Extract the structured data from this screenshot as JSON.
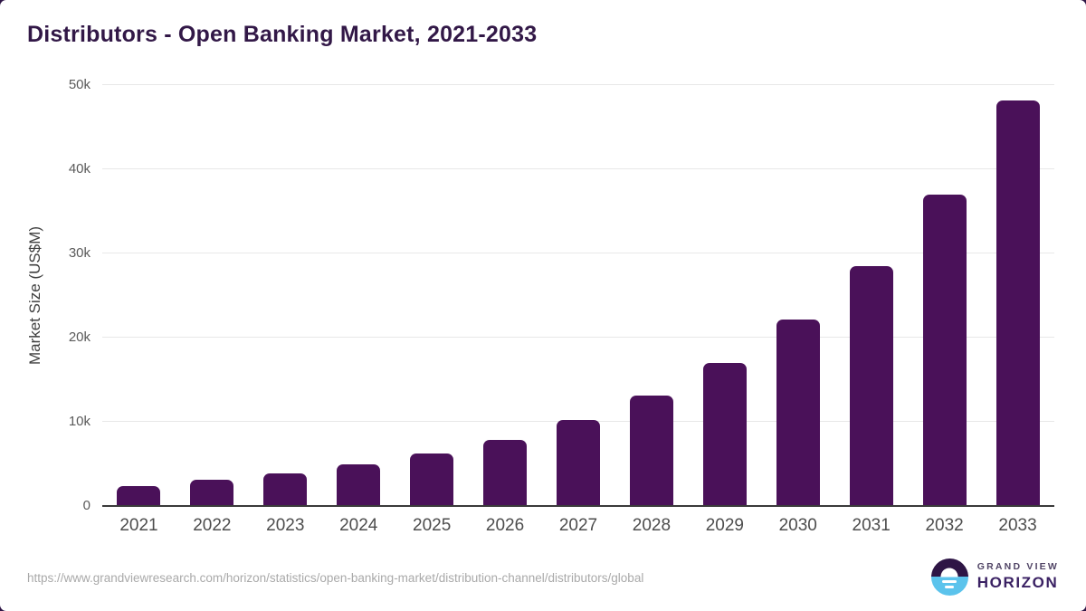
{
  "header": {
    "title": "Distributors - Open Banking Market, 2021-2033"
  },
  "chart_data": {
    "type": "bar",
    "title": "Distributors - Open Banking Market, 2021-2033",
    "categories": [
      "2021",
      "2022",
      "2023",
      "2024",
      "2025",
      "2026",
      "2027",
      "2028",
      "2029",
      "2030",
      "2031",
      "2032",
      "2033"
    ],
    "values": [
      2400,
      3100,
      3900,
      4900,
      6200,
      7900,
      10200,
      13100,
      17000,
      22100,
      28500,
      37000,
      48200
    ],
    "xlabel": "",
    "ylabel": "Market Size (US$M)",
    "ylim": [
      0,
      50000
    ],
    "yticks": [
      0,
      10000,
      20000,
      30000,
      40000,
      50000
    ],
    "ytick_labels": [
      "0",
      "10k",
      "20k",
      "30k",
      "40k",
      "50k"
    ],
    "grid": true,
    "legend": false,
    "bar_color": "#4A1159"
  },
  "footer": {
    "source_url": "https://www.grandviewresearch.com/horizon/statistics/open-banking-market/distribution-channel/distributors/global",
    "logo": {
      "line1": "GRAND VIEW",
      "line2": "HORIZON"
    }
  },
  "colors": {
    "title_text": "#321847",
    "bar": "#4A1159",
    "gridline": "#e8e8e8",
    "axis_line": "#3a3a3a",
    "page_background_behind_card": "#2E1545",
    "logo_purple": "#2E1545",
    "logo_blue": "#5BC3EC",
    "source_text": "#a9a9a9"
  }
}
